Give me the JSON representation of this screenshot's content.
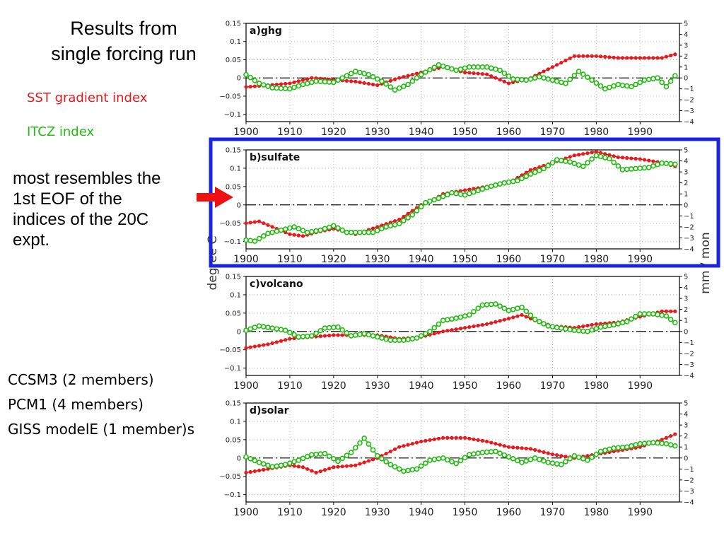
{
  "slide": {
    "title_lines": [
      "Results from",
      "single forcing run"
    ],
    "sst_label": "SST gradient index",
    "itcz_label": "ITCZ index",
    "note_lines": [
      "most resembles the",
      "1st EOF of the",
      "indices of the 20C",
      "expt."
    ],
    "models": [
      "CCSM3 (2 members)",
      "PCM1 (4 members)",
      "GISS modelE (1 member)s"
    ]
  },
  "colors": {
    "sst": "#e8191c",
    "itcz": "#22bb11",
    "highlight_box": "#1a24e0",
    "arrow": "#ee1111"
  },
  "axes": {
    "left_label": "degree C",
    "right_label": "mm / mon",
    "left_ticks": [
      "0.15",
      "0.1",
      "0.05",
      "0",
      "−0.05",
      "−0.1"
    ],
    "right_ticks": [
      "5",
      "4",
      "3",
      "2",
      "1",
      "0",
      "−1",
      "−2",
      "−3",
      "−4"
    ],
    "x_ticks": [
      "1900",
      "1910",
      "1920",
      "1930",
      "1940",
      "1950",
      "1960",
      "1970",
      "1980",
      "1990"
    ]
  },
  "chart_data": [
    {
      "type": "line",
      "panel_label": "a)ghg",
      "xlim": [
        1900,
        1999
      ],
      "ylim": [
        -0.12,
        0.15
      ],
      "y2lim": [
        -4,
        5
      ],
      "series": [
        {
          "name": "SST gradient index",
          "axis": "left",
          "x": [
            1900,
            1905,
            1910,
            1915,
            1920,
            1925,
            1930,
            1935,
            1940,
            1945,
            1950,
            1955,
            1960,
            1965,
            1970,
            1975,
            1980,
            1985,
            1990,
            1995,
            1998
          ],
          "y": [
            -0.025,
            -0.02,
            -0.015,
            0.0,
            -0.005,
            -0.01,
            -0.02,
            0.0,
            0.015,
            0.03,
            0.015,
            0.01,
            -0.015,
            0.0,
            0.03,
            0.06,
            0.06,
            0.055,
            0.055,
            0.055,
            0.065
          ]
        },
        {
          "name": "ITCZ index",
          "axis": "right",
          "x": [
            1900,
            1903,
            1906,
            1910,
            1913,
            1916,
            1920,
            1925,
            1928,
            1931,
            1934,
            1937,
            1940,
            1944,
            1948,
            1951,
            1955,
            1958,
            1961,
            1964,
            1967,
            1970,
            1973,
            1976,
            1979,
            1982,
            1985,
            1988,
            1991,
            1994,
            1996,
            1998
          ],
          "y": [
            0.3,
            -0.5,
            -0.9,
            -1.0,
            -0.6,
            -0.3,
            -0.4,
            0.6,
            0.3,
            -0.3,
            -1.1,
            -0.6,
            0.3,
            1.2,
            0.7,
            1.0,
            1.0,
            0.7,
            -0.1,
            -0.2,
            0.1,
            -0.2,
            -0.5,
            0.6,
            -0.2,
            -1.0,
            -0.6,
            -0.8,
            -0.2,
            0.0,
            -0.8,
            0.2
          ]
        }
      ]
    },
    {
      "type": "line",
      "panel_label": "b)sulfate",
      "xlim": [
        1900,
        1999
      ],
      "ylim": [
        -0.12,
        0.15
      ],
      "y2lim": [
        -4,
        5
      ],
      "series": [
        {
          "name": "SST gradient index",
          "axis": "left",
          "x": [
            1900,
            1903,
            1906,
            1910,
            1913,
            1916,
            1920,
            1925,
            1930,
            1935,
            1940,
            1943,
            1945,
            1950,
            1955,
            1960,
            1965,
            1970,
            1975,
            1980,
            1985,
            1990,
            1995,
            1998
          ],
          "y": [
            -0.05,
            -0.045,
            -0.06,
            -0.08,
            -0.085,
            -0.075,
            -0.065,
            -0.08,
            -0.06,
            -0.04,
            0.0,
            0.015,
            0.03,
            0.04,
            0.05,
            0.06,
            0.095,
            0.115,
            0.135,
            0.145,
            0.13,
            0.125,
            0.115,
            0.105
          ]
        },
        {
          "name": "ITCZ index",
          "axis": "right",
          "x": [
            1900,
            1902,
            1905,
            1908,
            1911,
            1914,
            1917,
            1920,
            1923,
            1926,
            1929,
            1932,
            1935,
            1938,
            1941,
            1944,
            1947,
            1950,
            1953,
            1956,
            1959,
            1962,
            1965,
            1968,
            1971,
            1974,
            1977,
            1980,
            1983,
            1986,
            1989,
            1992,
            1995,
            1998
          ],
          "y": [
            -3.2,
            -3.3,
            -2.6,
            -2.3,
            -2.0,
            -2.5,
            -2.3,
            -1.9,
            -2.5,
            -2.5,
            -2.5,
            -2.0,
            -1.7,
            -0.9,
            0.2,
            0.6,
            1.1,
            0.9,
            1.3,
            1.7,
            2.0,
            2.2,
            2.8,
            3.3,
            4.1,
            3.9,
            3.5,
            4.5,
            4.2,
            3.2,
            3.3,
            3.4,
            3.8,
            3.7
          ]
        }
      ]
    },
    {
      "type": "line",
      "panel_label": "c)volcano",
      "xlim": [
        1900,
        1999
      ],
      "ylim": [
        -0.12,
        0.15
      ],
      "y2lim": [
        -4,
        5
      ],
      "series": [
        {
          "name": "SST gradient index",
          "axis": "left",
          "x": [
            1900,
            1905,
            1910,
            1915,
            1920,
            1925,
            1930,
            1935,
            1940,
            1945,
            1950,
            1955,
            1960,
            1963,
            1966,
            1970,
            1975,
            1980,
            1985,
            1990,
            1995,
            1998
          ],
          "y": [
            -0.045,
            -0.035,
            -0.02,
            -0.015,
            -0.01,
            -0.01,
            -0.01,
            -0.02,
            -0.015,
            0.0,
            0.01,
            0.02,
            0.035,
            0.045,
            0.03,
            0.015,
            0.01,
            0.02,
            0.025,
            0.04,
            0.055,
            0.055
          ]
        },
        {
          "name": "ITCZ index",
          "axis": "right",
          "x": [
            1900,
            1903,
            1906,
            1909,
            1912,
            1915,
            1918,
            1921,
            1924,
            1927,
            1930,
            1933,
            1936,
            1939,
            1942,
            1945,
            1948,
            1951,
            1954,
            1957,
            1960,
            1963,
            1966,
            1969,
            1972,
            1975,
            1978,
            1981,
            1984,
            1987,
            1990,
            1993,
            1996,
            1998
          ],
          "y": [
            0.1,
            0.5,
            0.3,
            0.1,
            -0.5,
            -0.4,
            0.3,
            0.4,
            -0.4,
            -0.2,
            -0.5,
            -0.8,
            -0.8,
            -0.6,
            0.0,
            1.0,
            1.2,
            1.5,
            2.4,
            2.5,
            1.9,
            2.2,
            1.1,
            0.5,
            0.3,
            0.1,
            0.0,
            0.4,
            0.6,
            0.9,
            1.6,
            1.6,
            1.4,
            0.8
          ]
        }
      ]
    },
    {
      "type": "line",
      "panel_label": "d)solar",
      "xlim": [
        1900,
        1999
      ],
      "ylim": [
        -0.12,
        0.15
      ],
      "y2lim": [
        -4,
        5
      ],
      "series": [
        {
          "name": "SST gradient index",
          "axis": "left",
          "x": [
            1900,
            1905,
            1910,
            1913,
            1916,
            1920,
            1925,
            1930,
            1935,
            1940,
            1945,
            1950,
            1955,
            1960,
            1965,
            1970,
            1975,
            1980,
            1985,
            1990,
            1995,
            1998
          ],
          "y": [
            -0.04,
            -0.03,
            -0.02,
            -0.025,
            -0.04,
            -0.025,
            -0.02,
            0.0,
            0.03,
            0.045,
            0.055,
            0.055,
            0.045,
            0.03,
            0.025,
            0.01,
            0.0,
            0.01,
            0.02,
            0.03,
            0.05,
            0.065
          ]
        },
        {
          "name": "ITCZ index",
          "axis": "right",
          "x": [
            1900,
            1903,
            1906,
            1909,
            1912,
            1915,
            1918,
            1921,
            1924,
            1927,
            1930,
            1933,
            1936,
            1939,
            1942,
            1945,
            1948,
            1951,
            1954,
            1957,
            1960,
            1963,
            1966,
            1969,
            1972,
            1975,
            1978,
            1981,
            1984,
            1987,
            1990,
            1993,
            1996,
            1998
          ],
          "y": [
            0.1,
            -0.4,
            -0.8,
            -0.6,
            -0.2,
            0.3,
            0.4,
            -0.3,
            0.5,
            1.8,
            0.2,
            -0.6,
            -1.2,
            -1.0,
            -0.2,
            0.0,
            -0.5,
            0.3,
            0.5,
            0.6,
            0.1,
            -0.4,
            0.0,
            -0.4,
            -0.6,
            0.2,
            -0.2,
            0.6,
            0.9,
            1.0,
            1.3,
            1.4,
            1.3,
            1.1
          ]
        }
      ]
    }
  ]
}
